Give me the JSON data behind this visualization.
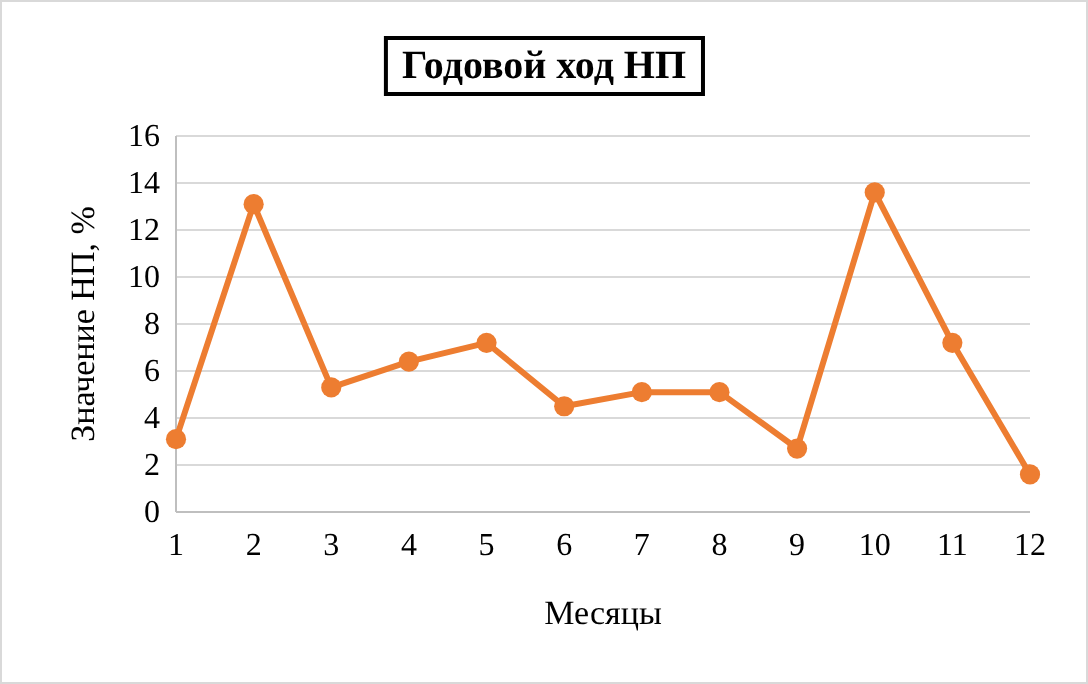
{
  "chart_data": {
    "type": "line",
    "title": "Годовой ход НП",
    "xlabel": "Месяцы",
    "ylabel": "Значение НП, %",
    "categories": [
      "1",
      "2",
      "3",
      "4",
      "5",
      "6",
      "7",
      "8",
      "9",
      "10",
      "11",
      "12"
    ],
    "series": [
      {
        "color": "#ed7d31",
        "values": [
          3.1,
          13.1,
          5.3,
          6.4,
          7.2,
          4.5,
          5.1,
          5.1,
          2.7,
          13.6,
          7.2,
          1.6
        ]
      }
    ],
    "ylim": [
      0,
      16
    ],
    "yticks": [
      0,
      2,
      4,
      6,
      8,
      10,
      12,
      14,
      16
    ],
    "grid": "y",
    "marker": "circle",
    "line_style": "solid"
  }
}
